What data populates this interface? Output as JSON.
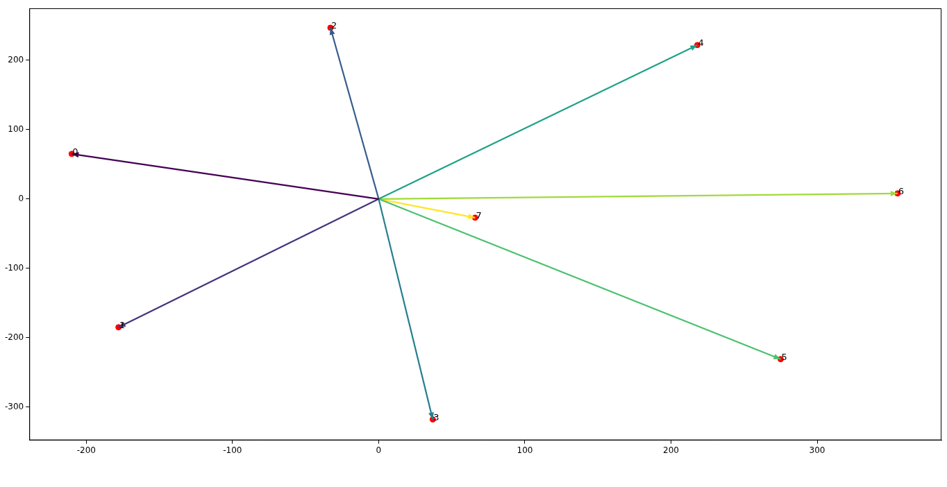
{
  "chart_data": {
    "type": "scatter",
    "origin": [
      0,
      0
    ],
    "labels": [
      "0",
      "1",
      "2",
      "3",
      "4",
      "5",
      "6",
      "7"
    ],
    "x": [
      -210,
      -178,
      -33,
      37,
      218,
      275,
      355,
      66
    ],
    "y": [
      65,
      -185,
      247,
      -318,
      222,
      -231,
      8,
      -27
    ],
    "colors": [
      "#440154",
      "#46327e",
      "#365c8d",
      "#277f8e",
      "#1fa187",
      "#4ac16d",
      "#a0da39",
      "#fde725"
    ],
    "color": "#ff0000",
    "marker": "circle",
    "xlim": [
      -239,
      385
    ],
    "ylim": [
      -348,
      275
    ],
    "xticks": [
      -200,
      -100,
      0,
      100,
      200,
      300
    ],
    "yticks": [
      -300,
      -200,
      -100,
      0,
      100,
      200
    ],
    "grid": false
  }
}
